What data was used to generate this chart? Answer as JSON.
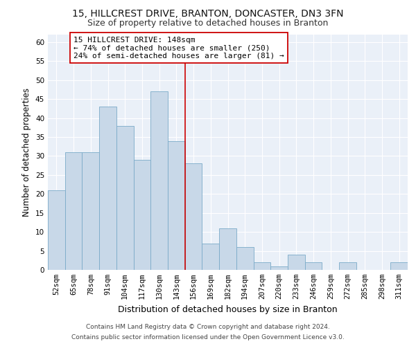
{
  "title1": "15, HILLCREST DRIVE, BRANTON, DONCASTER, DN3 3FN",
  "title2": "Size of property relative to detached houses in Branton",
  "xlabel": "Distribution of detached houses by size in Branton",
  "ylabel": "Number of detached properties",
  "categories": [
    "52sqm",
    "65sqm",
    "78sqm",
    "91sqm",
    "104sqm",
    "117sqm",
    "130sqm",
    "143sqm",
    "156sqm",
    "169sqm",
    "182sqm",
    "194sqm",
    "207sqm",
    "220sqm",
    "233sqm",
    "246sqm",
    "259sqm",
    "272sqm",
    "285sqm",
    "298sqm",
    "311sqm"
  ],
  "values": [
    21,
    31,
    31,
    43,
    38,
    29,
    47,
    34,
    28,
    7,
    11,
    6,
    2,
    1,
    4,
    2,
    0,
    2,
    0,
    0,
    2
  ],
  "bar_color": "#c8d8e8",
  "bar_edge_color": "#7aaac8",
  "bg_color": "#eaf0f8",
  "grid_color": "#ffffff",
  "vline_color": "#cc0000",
  "annotation_text": "15 HILLCREST DRIVE: 148sqm\n← 74% of detached houses are smaller (250)\n24% of semi-detached houses are larger (81) →",
  "annotation_box_color": "#cc0000",
  "ylim": [
    0,
    62
  ],
  "yticks": [
    0,
    5,
    10,
    15,
    20,
    25,
    30,
    35,
    40,
    45,
    50,
    55,
    60
  ],
  "footnote1": "Contains HM Land Registry data © Crown copyright and database right 2024.",
  "footnote2": "Contains public sector information licensed under the Open Government Licence v3.0.",
  "title1_fontsize": 10,
  "title2_fontsize": 9,
  "xlabel_fontsize": 9,
  "ylabel_fontsize": 8.5,
  "tick_fontsize": 7.5,
  "annotation_fontsize": 8,
  "footnote_fontsize": 6.5
}
